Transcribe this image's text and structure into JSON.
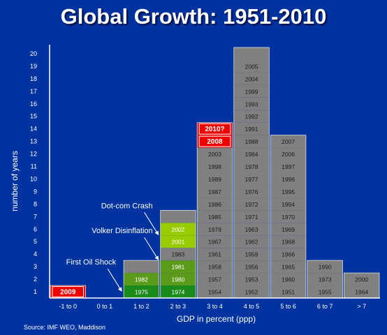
{
  "chart_data": {
    "type": "bar",
    "title": "Global Growth: 1951-2010",
    "xlabel": "GDP in percent (ppp)",
    "ylabel": "number of years",
    "ylim": [
      0,
      20
    ],
    "yticks": [
      1,
      2,
      3,
      4,
      5,
      6,
      7,
      8,
      9,
      10,
      11,
      12,
      13,
      14,
      15,
      16,
      17,
      18,
      19,
      20
    ],
    "categories": [
      "-1 to 0",
      "0 to 1",
      "1 to 2",
      "2 to 3",
      "3 to 4",
      "4 to 5",
      "5 to 6",
      "6 to 7",
      "> 7"
    ],
    "values": [
      1,
      0,
      3,
      7,
      14,
      20,
      13,
      3,
      2
    ],
    "stacks": [
      [
        {
          "year": "2009",
          "color": "#ee0000",
          "bold": true
        }
      ],
      [],
      [
        {
          "year": "1975",
          "color": "#1a8a1a"
        },
        {
          "year": "1982",
          "color": "#5c9a1c"
        },
        {
          "year": "",
          "color": "#808080"
        }
      ],
      [
        {
          "year": "1974",
          "color": "#1a8a1a"
        },
        {
          "year": "1980",
          "color": "#5c9a1c"
        },
        {
          "year": "1981",
          "color": "#5c9a1c"
        },
        {
          "year": "1983",
          "color": "#808080"
        },
        {
          "year": "2001",
          "color": "#99cc00"
        },
        {
          "year": "2002",
          "color": "#99cc00"
        },
        {
          "year": "",
          "color": "#808080"
        }
      ],
      [
        {
          "year": "1954"
        },
        {
          "year": "1957"
        },
        {
          "year": "1958"
        },
        {
          "year": "1961"
        },
        {
          "year": "1967"
        },
        {
          "year": "1979"
        },
        {
          "year": "1985"
        },
        {
          "year": "1986"
        },
        {
          "year": "1987"
        },
        {
          "year": "1989"
        },
        {
          "year": "1998"
        },
        {
          "year": "2003"
        },
        {
          "year": "2008",
          "color": "#ee0000",
          "bold": true
        },
        {
          "year": "2010?",
          "color": "#ee0000",
          "bold": true
        }
      ],
      [
        {
          "year": "1952"
        },
        {
          "year": "1953"
        },
        {
          "year": "1956"
        },
        {
          "year": "1959"
        },
        {
          "year": "1962"
        },
        {
          "year": "1963"
        },
        {
          "year": "1971"
        },
        {
          "year": "1972"
        },
        {
          "year": "1976"
        },
        {
          "year": "1977"
        },
        {
          "year": "1978"
        },
        {
          "year": "1984"
        },
        {
          "year": "1988"
        },
        {
          "year": "1991"
        },
        {
          "year": "1992"
        },
        {
          "year": "1993"
        },
        {
          "year": "1999"
        },
        {
          "year": "2004"
        },
        {
          "year": "2005"
        },
        {
          "year": ""
        }
      ],
      [
        {
          "year": "1951"
        },
        {
          "year": "1960"
        },
        {
          "year": "1965"
        },
        {
          "year": "1966"
        },
        {
          "year": "1968"
        },
        {
          "year": "1969"
        },
        {
          "year": "1970"
        },
        {
          "year": "1994"
        },
        {
          "year": "1995"
        },
        {
          "year": "1996"
        },
        {
          "year": "1997"
        },
        {
          "year": "2006"
        },
        {
          "year": "2007"
        }
      ],
      [
        {
          "year": "1955"
        },
        {
          "year": "1973"
        },
        {
          "year": "1990"
        }
      ],
      [
        {
          "year": "1964"
        },
        {
          "year": "2000"
        }
      ]
    ],
    "annotations": [
      {
        "text": "Dot-com Crash",
        "category": "2 to 3",
        "level": 6.5
      },
      {
        "text": "Volker Disinflation",
        "category": "2 to 3",
        "level": 4.5
      },
      {
        "text": "First Oil Shock",
        "category": "1 to 2",
        "level": 2
      }
    ],
    "colors": {
      "background": "#0033a0",
      "bar_default": "#808080",
      "highlight_red": "#ee0000",
      "oil_dark_green": "#1a8a1a",
      "volker_green": "#5c9a1c",
      "dotcom_lime": "#99cc00",
      "text": "#ffffff"
    },
    "source": "Source: IMF WEO, Maddison"
  }
}
